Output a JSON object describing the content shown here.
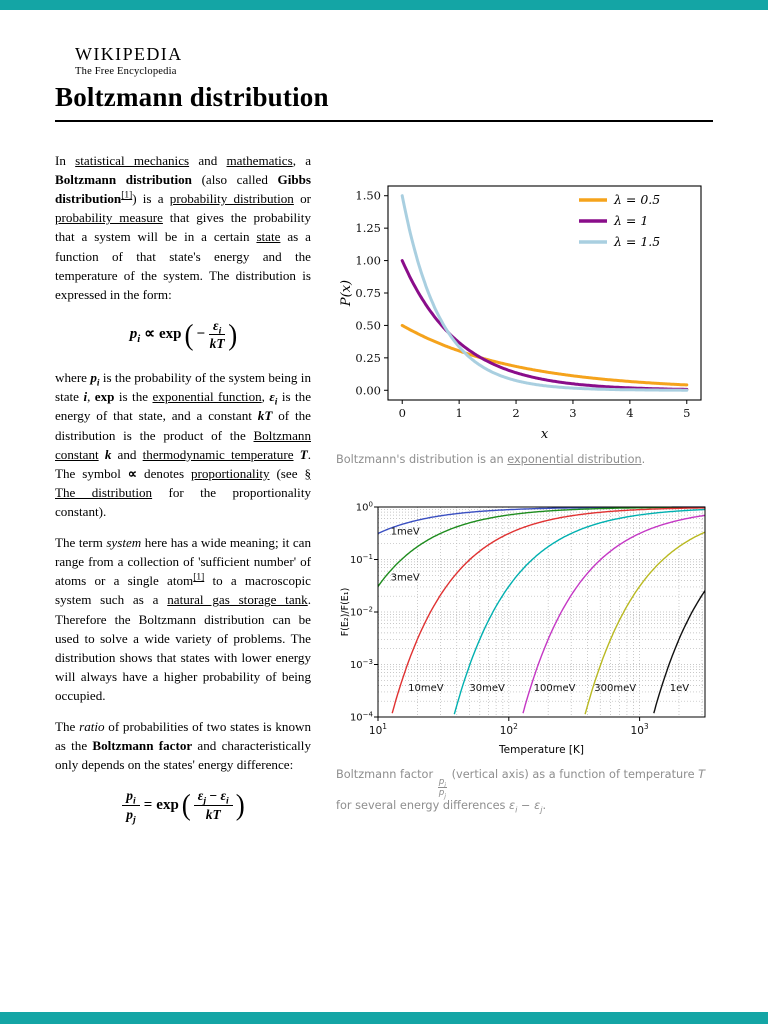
{
  "theme": {
    "bar_color": "#14a5a5",
    "caption_color": "#8e8e8e",
    "text_color": "#000000"
  },
  "header": {
    "wordmark": "WIKIPEDIA",
    "tagline": "The Free Encyclopedia"
  },
  "article": {
    "title": "Boltzmann distribution",
    "paragraphs": {
      "p1": [
        {
          "t": "In ",
          "s": ""
        },
        {
          "t": "statistical mechanics",
          "s": "u"
        },
        {
          "t": " and ",
          "s": ""
        },
        {
          "t": "mathematics",
          "s": "u"
        },
        {
          "t": ", a ",
          "s": ""
        },
        {
          "t": "Boltzmann distribution",
          "s": "b"
        },
        {
          "t": " (also called ",
          "s": ""
        },
        {
          "t": "Gibbs distribution",
          "s": "b"
        },
        {
          "t": "[1]",
          "s": "us"
        },
        {
          "t": ") is a ",
          "s": ""
        },
        {
          "t": "probability distribution",
          "s": "u"
        },
        {
          "t": " or ",
          "s": ""
        },
        {
          "t": "probability measure",
          "s": "u"
        },
        {
          "t": " that gives the probability that a system will be in a certain ",
          "s": ""
        },
        {
          "t": "state",
          "s": "u"
        },
        {
          "t": " as a function of that state's energy and the temperature of the system. The distribution is expressed in the form:",
          "s": ""
        }
      ],
      "p2": [
        {
          "t": "where ",
          "s": ""
        },
        {
          "t": "p",
          "s": "bi"
        },
        {
          "t": "i",
          "s": "bid"
        },
        {
          "t": " is the probability of the system being in state ",
          "s": ""
        },
        {
          "t": "i",
          "s": "bi"
        },
        {
          "t": ", ",
          "s": ""
        },
        {
          "t": "exp",
          "s": "b"
        },
        {
          "t": " is the ",
          "s": ""
        },
        {
          "t": "exponential function",
          "s": "u"
        },
        {
          "t": ", ",
          "s": ""
        },
        {
          "t": "ε",
          "s": "bi"
        },
        {
          "t": "i",
          "s": "bid"
        },
        {
          "t": " is the energy of that state, and a constant ",
          "s": ""
        },
        {
          "t": "kT",
          "s": "bi"
        },
        {
          "t": " of the distribution is the product of the ",
          "s": ""
        },
        {
          "t": "Boltzmann constant",
          "s": "u"
        },
        {
          "t": " ",
          "s": ""
        },
        {
          "t": "k",
          "s": "bi"
        },
        {
          "t": " and ",
          "s": ""
        },
        {
          "t": "thermodynamic temperature",
          "s": "u"
        },
        {
          "t": " ",
          "s": ""
        },
        {
          "t": "T",
          "s": "bi"
        },
        {
          "t": ". The symbol ",
          "s": ""
        },
        {
          "t": "∝",
          "s": "b"
        },
        {
          "t": " denotes ",
          "s": ""
        },
        {
          "t": "proportionality",
          "s": "u"
        },
        {
          "t": " (see ",
          "s": ""
        },
        {
          "t": "§ The distribution",
          "s": "u"
        },
        {
          "t": " for the proportionality constant).",
          "s": ""
        }
      ],
      "p3": [
        {
          "t": "The term ",
          "s": ""
        },
        {
          "t": "system",
          "s": "i"
        },
        {
          "t": " here has a wide meaning; it can range from a collection of 'sufficient number' of atoms or a single atom",
          "s": ""
        },
        {
          "t": "[1]",
          "s": "us"
        },
        {
          "t": " to a macroscopic system such as a ",
          "s": ""
        },
        {
          "t": "natural gas storage tank",
          "s": "u"
        },
        {
          "t": ". Therefore the Boltzmann distribution can be used to solve a wide variety of problems. The distribution shows that states with lower energy will always have a higher probability of being occupied.",
          "s": ""
        }
      ],
      "p4": [
        {
          "t": "The ",
          "s": ""
        },
        {
          "t": "ratio",
          "s": "i"
        },
        {
          "t": " of probabilities of two states is known as the ",
          "s": ""
        },
        {
          "t": "Boltzmann factor",
          "s": "b"
        },
        {
          "t": " and characteristically only depends on the states' energy difference:",
          "s": ""
        }
      ]
    },
    "formula1": {
      "lhs_runs": [
        {
          "t": "p",
          "s": "bi"
        },
        {
          "t": "i",
          "s": "bid"
        }
      ],
      "rel": "∝",
      "func": "exp",
      "open": "(",
      "minus": "−",
      "num_runs": [
        {
          "t": "ε",
          "s": "bi"
        },
        {
          "t": "i",
          "s": "bid"
        }
      ],
      "den_runs": [
        {
          "t": "kT",
          "s": "bi"
        }
      ],
      "close": ")"
    },
    "formula2": {
      "lhs_num_runs": [
        {
          "t": "p",
          "s": "bi"
        },
        {
          "t": "i",
          "s": "bid"
        }
      ],
      "lhs_den_runs": [
        {
          "t": "p",
          "s": "bi"
        },
        {
          "t": "j",
          "s": "bid"
        }
      ],
      "rel": "=",
      "func": "exp",
      "open": "(",
      "num_runs": [
        {
          "t": "ε",
          "s": "bi"
        },
        {
          "t": "j",
          "s": "bid"
        },
        {
          "t": " − ",
          "s": "b"
        },
        {
          "t": "ε",
          "s": "bi"
        },
        {
          "t": "i",
          "s": "bid"
        }
      ],
      "den_runs": [
        {
          "t": "kT",
          "s": "bi"
        }
      ],
      "close": ")"
    },
    "captions": {
      "c1": [
        {
          "t": "Boltzmann's distribution is an ",
          "s": ""
        },
        {
          "t": "exponential distribution",
          "s": "u"
        },
        {
          "t": ".",
          "s": ""
        }
      ],
      "c2": [
        {
          "t": "Boltzmann factor ",
          "s": ""
        },
        {
          "frac": {
            "n": [
              {
                "t": "p",
                "s": "i"
              },
              {
                "t": "i",
                "s": "id"
              }
            ],
            "d": [
              {
                "t": "p",
                "s": "i"
              },
              {
                "t": "j",
                "s": "id"
              }
            ]
          }
        },
        {
          "t": " (vertical axis) as a function of temperature ",
          "s": ""
        },
        {
          "t": "T",
          "s": "i"
        },
        {
          "t": " for several energy differences ",
          "s": ""
        },
        {
          "t": "ε",
          "s": "i"
        },
        {
          "t": "i",
          "s": "id"
        },
        {
          "t": " − ",
          "s": ""
        },
        {
          "t": "ε",
          "s": "i"
        },
        {
          "t": "j",
          "s": "id"
        },
        {
          "t": ".",
          "s": ""
        }
      ]
    }
  },
  "chart_data": [
    {
      "type": "line",
      "title": "",
      "xlabel": "x",
      "ylabel": "P(x)",
      "xlim": [
        -0.25,
        5.25
      ],
      "ylim": [
        -0.075,
        1.575
      ],
      "x_data_range": [
        0,
        5
      ],
      "xticks": [
        0,
        1,
        2,
        3,
        4,
        5
      ],
      "xtick_labels": [
        "0",
        "1",
        "2",
        "3",
        "4",
        "5"
      ],
      "yticks": [
        0,
        0.25,
        0.5,
        0.75,
        1.0,
        1.25,
        1.5
      ],
      "ytick_labels": [
        "0.00",
        "0.25",
        "0.50",
        "0.75",
        "1.00",
        "1.25",
        "1.50"
      ],
      "grid": false,
      "legend_position": "upper-right",
      "curve_formula": "P(x) = λ·exp(−λx)",
      "series": [
        {
          "name": "λ = 0.5",
          "lambda": 0.5,
          "color": "#f5a31c"
        },
        {
          "name": "λ = 1",
          "lambda": 1.0,
          "color": "#8a0d8a"
        },
        {
          "name": "λ = 1.5",
          "lambda": 1.5,
          "color": "#a9cfe0"
        }
      ]
    },
    {
      "type": "line",
      "title": "",
      "xlabel": "Temperature [K]",
      "ylabel": "F(E₂)/F(E₁)",
      "xscale": "log",
      "yscale": "log",
      "xlim": [
        10,
        3162
      ],
      "ylim": [
        0.0001,
        1
      ],
      "xtick_exponents": [
        1,
        2,
        3
      ],
      "ytick_exponents": [
        0,
        -1,
        -2,
        -3,
        -4
      ],
      "grid": "dotted",
      "boltzmann_constant_eV_per_K": 8.617e-05,
      "curve_formula": "F = exp(−ΔE/(kB·T))",
      "series": [
        {
          "name": "1meV",
          "delta_E_eV": 0.001,
          "color": "#3a4fc1"
        },
        {
          "name": "3meV",
          "delta_E_eV": 0.003,
          "color": "#1e8c1e"
        },
        {
          "name": "10meV",
          "delta_E_eV": 0.01,
          "color": "#e03131"
        },
        {
          "name": "30meV",
          "delta_E_eV": 0.03,
          "color": "#00b0b0"
        },
        {
          "name": "100meV",
          "delta_E_eV": 0.1,
          "color": "#c437c4"
        },
        {
          "name": "300meV",
          "delta_E_eV": 0.3,
          "color": "#b9b921"
        },
        {
          "name": "1eV",
          "delta_E_eV": 1.0,
          "color": "#111111"
        }
      ],
      "curve_labels": [
        {
          "text": "1meV",
          "x": 12.5,
          "y": 0.3
        },
        {
          "text": "3meV",
          "x": 12.5,
          "y": 0.04
        },
        {
          "text": "10meV",
          "x": 17,
          "y": 0.00031
        },
        {
          "text": "30meV",
          "x": 50,
          "y": 0.00031
        },
        {
          "text": "100meV",
          "x": 155,
          "y": 0.00031
        },
        {
          "text": "300meV",
          "x": 450,
          "y": 0.00031
        },
        {
          "text": "1eV",
          "x": 1700,
          "y": 0.00031
        }
      ]
    }
  ]
}
